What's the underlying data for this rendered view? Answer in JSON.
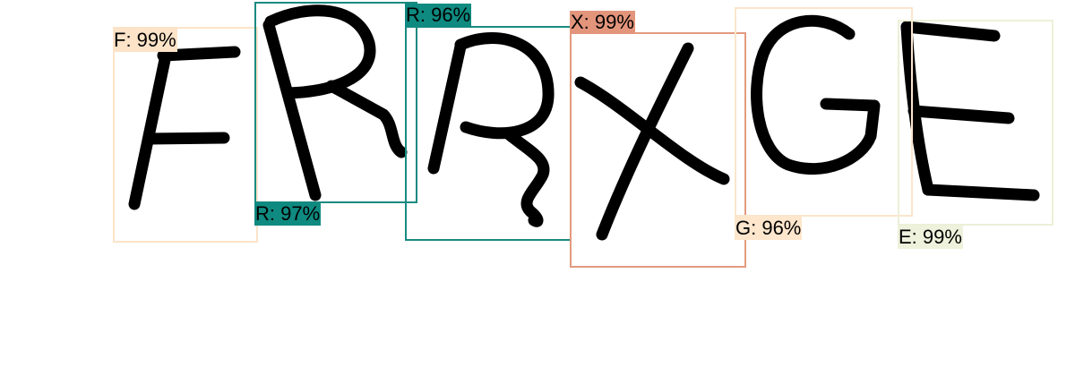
{
  "image": {
    "captcha_text": "FRRXGE",
    "background": "#ffffff",
    "ink": "#000000"
  },
  "detections": [
    {
      "char": "F",
      "label": "F: 99%",
      "confidence": 0.99,
      "color": "#fbe3c8",
      "label_bg": "#fde3c8"
    },
    {
      "char": "R",
      "label": "R: 97%",
      "confidence": 0.97,
      "color": "#1a8a80",
      "label_bg": "#0f8a80"
    },
    {
      "char": "R",
      "label": "R: 96%",
      "confidence": 0.96,
      "color": "#1a8a80",
      "label_bg": "#0f8a80"
    },
    {
      "char": "X",
      "label": "X: 99%",
      "confidence": 0.99,
      "color": "#e39a7e",
      "label_bg": "#e3957c"
    },
    {
      "char": "G",
      "label": "G: 96%",
      "confidence": 0.96,
      "color": "#fbe6cc",
      "label_bg": "#fde6cc"
    },
    {
      "char": "E",
      "label": "E: 99%",
      "confidence": 0.99,
      "color": "#ecf0d8",
      "label_bg": "#eef2dc"
    }
  ]
}
